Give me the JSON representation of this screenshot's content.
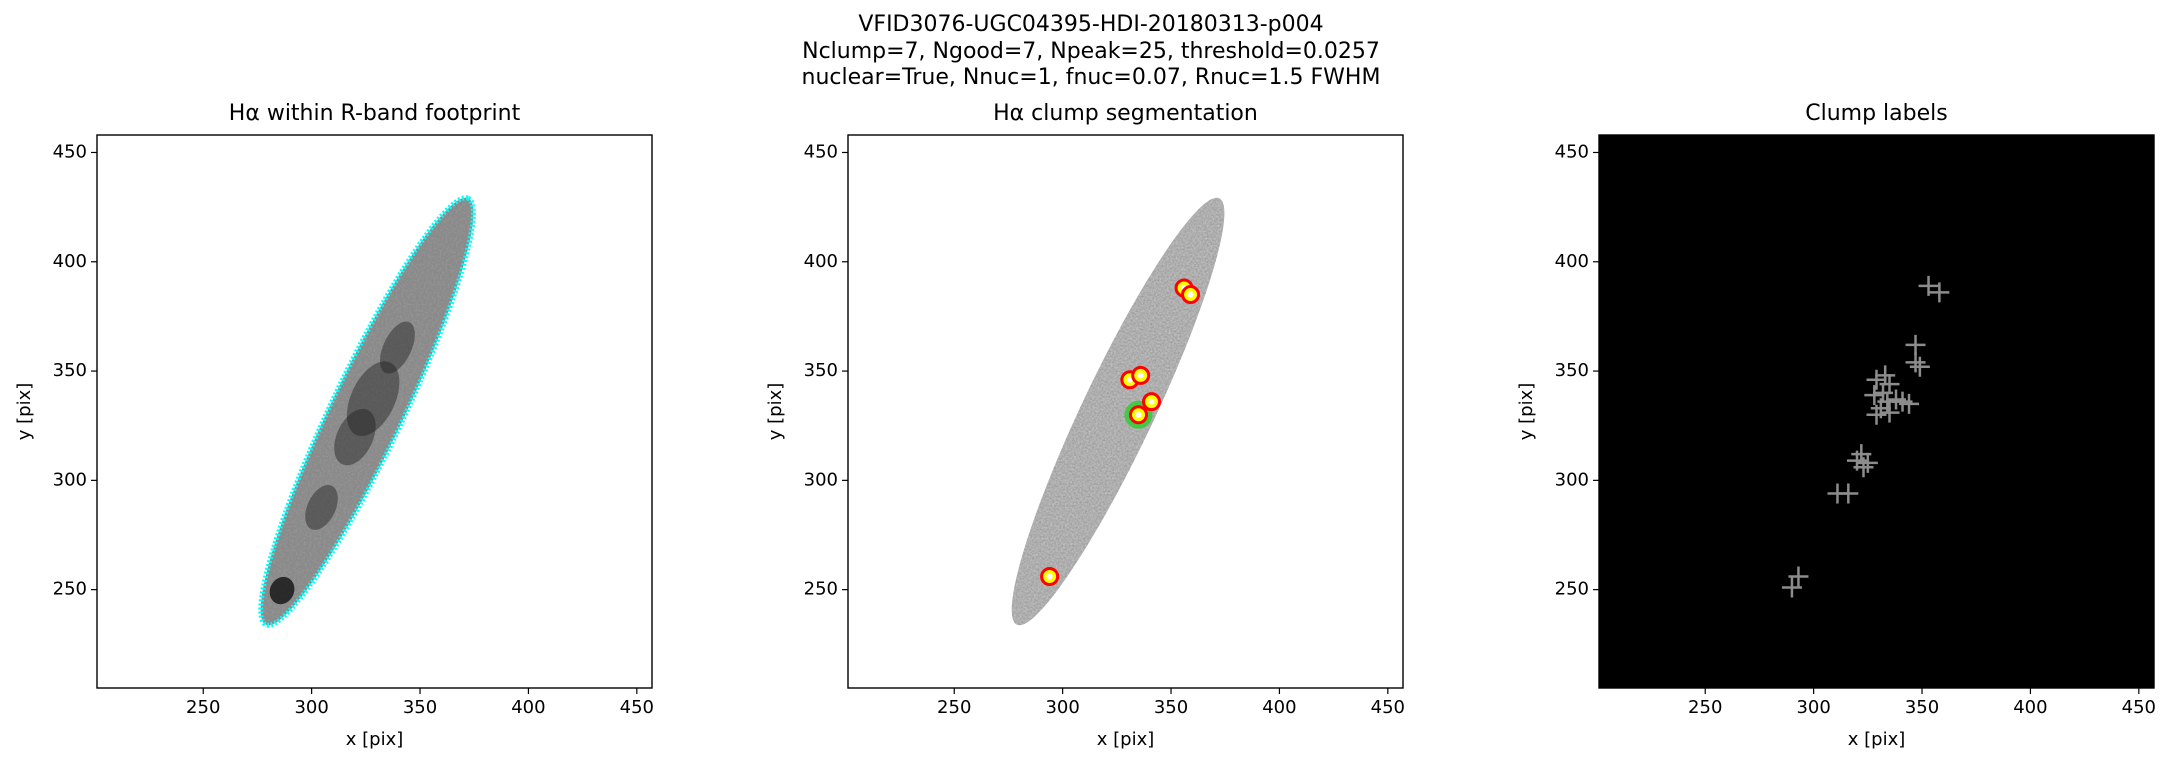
{
  "suptitle": [
    "VFID3076-UGC04395-HDI-20180313-p004",
    "Nclump=7, Ngood=7, Npeak=25, threshold=0.0257",
    "nuclear=True, Nnuc=1, fnuc=0.07, Rnuc=1.5 FWHM"
  ],
  "chart_data": [
    {
      "type": "image",
      "title": "Hα within R-band footprint",
      "xlabel": "x [pix]",
      "ylabel": "y [pix]",
      "xlim": [
        201,
        457
      ],
      "ylim": [
        205,
        458
      ],
      "xticks": [
        250,
        300,
        350,
        400,
        450
      ],
      "yticks": [
        250,
        300,
        350,
        400,
        450
      ],
      "background": "#ffffff",
      "contour_color": "#00ffff"
    },
    {
      "type": "scatter",
      "title": "Hα clump segmentation",
      "xlabel": "x [pix]",
      "ylabel": "y [pix]",
      "xlim": [
        201,
        457
      ],
      "ylim": [
        205,
        458
      ],
      "xticks": [
        250,
        300,
        350,
        400,
        450
      ],
      "yticks": [
        250,
        300,
        350,
        400,
        450
      ],
      "background": "#ffffff",
      "series": [
        {
          "color": "#33cc33",
          "x": [
            335
          ],
          "y": [
            330
          ]
        },
        {
          "color": "#ff0000",
          "x": [
            356,
            359,
            331,
            336,
            341,
            335,
            294
          ],
          "y": [
            388,
            385,
            346,
            348,
            336,
            330,
            256
          ]
        }
      ]
    },
    {
      "type": "scatter",
      "title": "Clump labels",
      "xlabel": "x [pix]",
      "ylabel": "y [pix]",
      "xlim": [
        201,
        457
      ],
      "ylim": [
        205,
        458
      ],
      "xticks": [
        250,
        300,
        350,
        400,
        450
      ],
      "yticks": [
        250,
        300,
        350,
        400,
        450
      ],
      "background": "#000000",
      "marker": "plus",
      "series": [
        {
          "color": "#8c8c8c",
          "x": [
            353,
            358,
            347,
            347,
            349,
            333,
            329,
            332,
            334,
            331,
            341,
            344,
            329,
            335,
            322,
            325,
            323,
            311,
            316,
            293,
            290,
            335,
            338,
            328,
            320
          ],
          "y": [
            389,
            386,
            362,
            354,
            352,
            348,
            346,
            340,
            336,
            333,
            336,
            335,
            330,
            331,
            312,
            308,
            306,
            294,
            294,
            256,
            251,
            344,
            337,
            339,
            309
          ]
        }
      ]
    }
  ]
}
